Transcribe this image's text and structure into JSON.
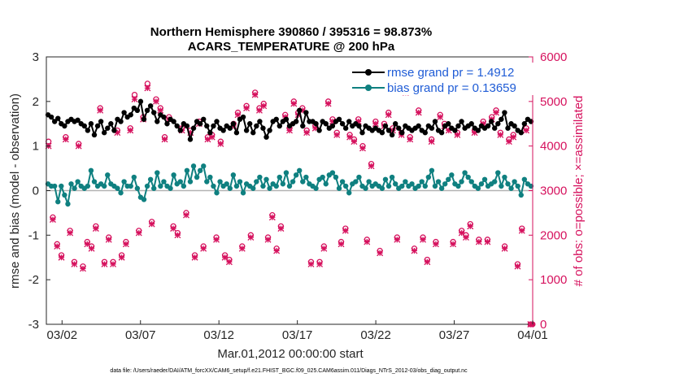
{
  "chart_data": {
    "type": "line",
    "title_line1": "Northern Hemisphere 390860 / 395316 = 98.873%",
    "title_line2": "ACARS_TEMPERATURE @ 200 hPa",
    "xlabel": "Mar.01,2012 00:00:00 start",
    "ylabel_left": "rmse and bias (model - observation)",
    "ylabel_right": "# of obs: o=possible; ×=assimilated",
    "footnote": "data file: /Users/raeder/DAI/ATM_forcXX/CAM6_setup/f.e21.FHIST_BGC.f09_025.CAM6assim.011/Diags_NTrS_2012-03/obs_diag_output.nc",
    "xlim": [
      0,
      31
    ],
    "ylim_left": [
      -3,
      3
    ],
    "ylim_right": [
      0,
      6000
    ],
    "x_ticks": [
      {
        "x": 1,
        "label": "03/02"
      },
      {
        "x": 6,
        "label": "03/07"
      },
      {
        "x": 11,
        "label": "03/12"
      },
      {
        "x": 16,
        "label": "03/17"
      },
      {
        "x": 21,
        "label": "03/22"
      },
      {
        "x": 26,
        "label": "03/27"
      },
      {
        "x": 31,
        "label": "04/01"
      }
    ],
    "y_left_ticks": [
      "3",
      "2",
      "1",
      "0",
      "-1",
      "-2",
      "-3"
    ],
    "y_right_ticks": [
      "6000",
      "5000",
      "4000",
      "3000",
      "2000",
      "1000",
      "0"
    ],
    "colors": {
      "rmse": "#000000",
      "bias": "#0f8080",
      "obs": "#d6125e",
      "zero_line": "#b3b3b3",
      "legend_text": "#1f5cd6"
    },
    "series": [
      {
        "name": "rmse grand pr = 1.4912",
        "axis": "left",
        "values": [
          1.7,
          1.65,
          1.55,
          1.62,
          1.5,
          1.45,
          1.55,
          1.6,
          1.55,
          1.58,
          1.5,
          1.45,
          1.35,
          1.5,
          1.25,
          1.45,
          1.55,
          1.3,
          1.4,
          1.5,
          1.35,
          1.6,
          1.55,
          1.75,
          1.65,
          1.7,
          1.85,
          1.8,
          2.0,
          1.6,
          1.8,
          1.9,
          1.75,
          1.55,
          1.7,
          1.65,
          1.5,
          1.6,
          1.55,
          1.45,
          1.35,
          1.5,
          1.45,
          1.15,
          1.4,
          1.55,
          1.5,
          1.6,
          1.45,
          1.3,
          1.45,
          1.55,
          1.4,
          1.35,
          1.45,
          1.4,
          1.5,
          1.3,
          1.6,
          1.65,
          1.35,
          1.5,
          1.3,
          1.45,
          1.55,
          1.4,
          1.2,
          1.35,
          1.55,
          1.6,
          1.45,
          1.55,
          1.6,
          1.45,
          1.5,
          1.55,
          1.8,
          1.45,
          1.75,
          1.55,
          1.55,
          1.5,
          1.35,
          1.55,
          1.5,
          1.4,
          1.45,
          1.55,
          1.6,
          1.5,
          1.4,
          1.55,
          1.45,
          1.5,
          1.45,
          1.3,
          1.45,
          1.4,
          1.35,
          1.4,
          1.35,
          1.3,
          1.45,
          1.35,
          1.25,
          1.5,
          1.4,
          1.3,
          1.45,
          1.4,
          1.35,
          1.4,
          1.45,
          1.35,
          1.3,
          1.45,
          1.4,
          1.55,
          1.35,
          1.3,
          1.45,
          1.5,
          1.4,
          1.35,
          1.45,
          1.55,
          1.4,
          1.45,
          1.5,
          1.4,
          1.35,
          1.45,
          1.4,
          1.45,
          1.55,
          1.4,
          1.5,
          1.6,
          1.75,
          1.4,
          1.5,
          1.45,
          1.35,
          1.3,
          1.5,
          1.6,
          1.55
        ]
      },
      {
        "name": "bias grand pr = 0.13659",
        "axis": "left",
        "values": [
          0.15,
          0.1,
          0.1,
          -0.25,
          0.1,
          -0.1,
          -0.3,
          0.15,
          0.05,
          0.2,
          0.1,
          0.05,
          0.1,
          0.45,
          0.2,
          0.1,
          0.15,
          0.1,
          0.35,
          0.15,
          0.1,
          0.05,
          -0.05,
          0.2,
          0.1,
          0.1,
          0.3,
          0.05,
          -0.15,
          -0.2,
          0.1,
          0.25,
          0.05,
          0.4,
          0.1,
          0.2,
          0.1,
          0.05,
          0.35,
          0.15,
          0.2,
          0.1,
          0.45,
          0.2,
          0.55,
          0.3,
          0.45,
          0.55,
          0.2,
          0.3,
          0.1,
          -0.05,
          0.2,
          0.1,
          0.15,
          0.05,
          0.35,
          0.1,
          0.2,
          -0.05,
          0.15,
          0.1,
          0.05,
          0.2,
          0.3,
          0.1,
          0.25,
          0.05,
          0.15,
          0.1,
          0.3,
          0.15,
          0.4,
          0.1,
          0.2,
          0.35,
          0.45,
          0.2,
          0.3,
          0.15,
          0.1,
          0.05,
          0.25,
          0.3,
          0.15,
          0.35,
          0.4,
          0.3,
          0.05,
          0.2,
          0.1,
          -0.05,
          0.15,
          0.2,
          0.3,
          0.1,
          0.05,
          0.2,
          0.1,
          0.15,
          0.1,
          0.05,
          0.25,
          0.1,
          0.3,
          0.15,
          0.05,
          0.1,
          0.2,
          0.1,
          0.15,
          0.05,
          0.1,
          0.2,
          0.1,
          0.3,
          0.45,
          0.1,
          0.2,
          0.05,
          0.15,
          0.25,
          0.35,
          0.15,
          0.1,
          0.2,
          0.4,
          0.3,
          0.2,
          0.1,
          0.05,
          0.15,
          0.25,
          0.1,
          0.15,
          0.2,
          0.4,
          0.1,
          0.3,
          0.15,
          0.05,
          0.2,
          0.1,
          -0.1,
          0.25,
          0.15,
          0.1
        ]
      }
    ],
    "obs_possible_approx": [
      4100,
      2400,
      1800,
      1550,
      4200,
      2100,
      1400,
      4050,
      1300,
      1850,
      1750,
      2200,
      4850,
      1400,
      1950,
      1400,
      4350,
      1550,
      1850,
      4400,
      5150,
      2100,
      4650,
      5400,
      2300,
      5050,
      4850,
      4200,
      4650,
      2200,
      2050,
      4400,
      2500,
      4350,
      1550,
      4550,
      1750,
      4200,
      4250,
      1950,
      4100,
      1550,
      1450,
      4500,
      4750,
      1750,
      4900,
      2000,
      5200,
      4850,
      4950,
      1950,
      2450,
      1700,
      2200,
      4700,
      4400,
      5000,
      4750,
      4850,
      4350,
      1400,
      4450,
      1400,
      1750,
      5000,
      4600,
      4300,
      1850,
      2150,
      4250,
      4150,
      4600,
      4000,
      1900,
      3600,
      4550,
      1650,
      4500,
      4750,
      4400,
      1950,
      4300,
      5250,
      4200,
      1700,
      4800,
      1950,
      1450,
      4150,
      1850,
      4700,
      4500,
      4400,
      1850,
      4300,
      2100,
      2000,
      2250,
      4350,
      1900,
      4550,
      1900,
      4650,
      4800,
      4300,
      1750,
      4150,
      4250,
      1350,
      2150,
      4400,
      0
    ],
    "obs_assimilated_approx": [
      4000,
      2350,
      1750,
      1500,
      4150,
      2050,
      1350,
      4000,
      1250,
      1800,
      1700,
      2150,
      4800,
      1350,
      1900,
      1350,
      4300,
      1500,
      1800,
      4350,
      5050,
      2050,
      4600,
      5300,
      2250,
      5000,
      4800,
      4150,
      4600,
      2150,
      2000,
      4350,
      2450,
      4300,
      1500,
      4500,
      1700,
      4150,
      4200,
      1900,
      4050,
      1500,
      1400,
      4450,
      4700,
      1700,
      4850,
      1950,
      5150,
      4800,
      4900,
      1900,
      2400,
      1650,
      2150,
      4650,
      4350,
      4950,
      4700,
      4800,
      4300,
      1350,
      4400,
      1350,
      1700,
      4950,
      4550,
      4250,
      1800,
      2100,
      4200,
      4100,
      4550,
      3950,
      1850,
      3550,
      4500,
      1600,
      4450,
      4700,
      4350,
      1900,
      4250,
      5200,
      4150,
      1650,
      4750,
      1900,
      1400,
      4100,
      1800,
      4650,
      4450,
      4350,
      1800,
      4250,
      2050,
      1950,
      2200,
      4300,
      1850,
      4500,
      1850,
      4600,
      4750,
      4250,
      1700,
      4100,
      4200,
      1300,
      2100,
      4350,
      0
    ]
  }
}
